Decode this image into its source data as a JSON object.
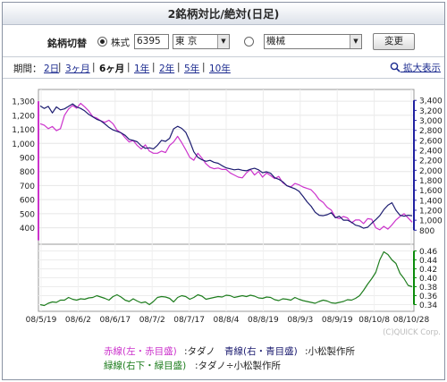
{
  "window": {
    "title": "2銘柄対比/絶対(日足)"
  },
  "switcher": {
    "label": "銘柄切替",
    "stock_label": "株式",
    "code": "6395",
    "market": "東 京",
    "sector": "機械",
    "change_button": "変更",
    "selected": "stock"
  },
  "period": {
    "label": "期間：",
    "options": [
      "2日",
      "3ヶ月",
      "6ヶ月",
      "1年",
      "2年",
      "5年",
      "10年"
    ],
    "selected": "6ヶ月",
    "zoom_label": "拡大表示"
  },
  "chart_data": {
    "type": "line",
    "x_ticks": [
      "08/5/19",
      "08/6/2",
      "08/6/17",
      "08/7/2",
      "08/7/17",
      "08/8/4",
      "08/8/19",
      "08/9/3",
      "08/9/19",
      "08/10/8",
      "08/10/28"
    ],
    "main": {
      "left_axis": {
        "ticks": [
          1300,
          1200,
          1100,
          1000,
          900,
          800,
          700,
          600,
          500,
          400
        ],
        "range": [
          340,
          1320
        ],
        "color": "#cc33cc"
      },
      "right_axis": {
        "ticks": [
          3400,
          3200,
          3000,
          2800,
          2600,
          2400,
          2200,
          2000,
          1800,
          1600,
          1400,
          1200,
          1000,
          800
        ],
        "range": [
          680,
          3440
        ],
        "color": "#2020a0"
      },
      "series": [
        {
          "name": "タダノ",
          "axis": "left",
          "color": "#cc33cc",
          "values": [
            1140,
            1130,
            1105,
            1120,
            1090,
            1105,
            1200,
            1245,
            1270,
            1250,
            1285,
            1260,
            1230,
            1190,
            1180,
            1160,
            1150,
            1165,
            1140,
            1095,
            1075,
            1040,
            1010,
            1020,
            985,
            960,
            990,
            945,
            930,
            930,
            945,
            935,
            985,
            1010,
            1050,
            1005,
            955,
            900,
            880,
            930,
            895,
            855,
            830,
            820,
            825,
            815,
            815,
            790,
            775,
            760,
            755,
            790,
            815,
            775,
            800,
            760,
            790,
            770,
            750,
            765,
            720,
            700,
            690,
            715,
            705,
            690,
            680,
            670,
            640,
            600,
            580,
            545,
            525,
            475,
            465,
            480,
            470,
            435,
            455,
            455,
            430,
            465,
            460,
            400,
            385,
            410,
            390,
            420,
            455,
            480,
            500,
            470,
            440
          ]
        },
        {
          "name": "小松製作所",
          "axis": "right",
          "color": "#1c1c70",
          "values": [
            3290,
            3240,
            3280,
            3150,
            3270,
            3210,
            3230,
            3280,
            3330,
            3270,
            3240,
            3190,
            3120,
            3070,
            3020,
            2990,
            2930,
            2860,
            2810,
            2780,
            2750,
            2700,
            2620,
            2600,
            2570,
            2490,
            2440,
            2450,
            2430,
            2500,
            2600,
            2580,
            2640,
            2830,
            2880,
            2840,
            2760,
            2580,
            2370,
            2260,
            2210,
            2180,
            2200,
            2160,
            2140,
            2090,
            2050,
            2030,
            2010,
            2020,
            2000,
            1990,
            2020,
            2040,
            2010,
            1950,
            1970,
            1940,
            1850,
            1820,
            1770,
            1690,
            1660,
            1630,
            1580,
            1480,
            1370,
            1280,
            1160,
            1100,
            1090,
            1110,
            1150,
            1050,
            1080,
            1000,
            1000,
            960,
            900,
            880,
            840,
            860,
            940,
            1010,
            1090,
            1210,
            1300,
            1350,
            1200,
            1100,
            1080,
            1100,
            1090
          ]
        }
      ]
    },
    "ratio": {
      "right_axis": {
        "ticks": [
          0.46,
          0.44,
          0.42,
          0.4,
          0.38,
          0.36,
          0.34
        ],
        "range": [
          0.333,
          0.465
        ],
        "color": "#0a8a0a"
      },
      "series": [
        {
          "name": "タダノ÷小松製作所",
          "color": "#1e7d1e",
          "values": [
            0.34,
            0.338,
            0.343,
            0.346,
            0.345,
            0.35,
            0.35,
            0.356,
            0.352,
            0.35,
            0.353,
            0.352,
            0.355,
            0.356,
            0.36,
            0.357,
            0.354,
            0.35,
            0.358,
            0.362,
            0.357,
            0.35,
            0.347,
            0.353,
            0.348,
            0.344,
            0.346,
            0.34,
            0.347,
            0.356,
            0.358,
            0.357,
            0.354,
            0.346,
            0.356,
            0.36,
            0.358,
            0.352,
            0.356,
            0.362,
            0.359,
            0.352,
            0.354,
            0.356,
            0.358,
            0.357,
            0.361,
            0.36,
            0.356,
            0.358,
            0.36,
            0.358,
            0.361,
            0.359,
            0.355,
            0.354,
            0.357,
            0.356,
            0.351,
            0.349,
            0.353,
            0.352,
            0.35,
            0.356,
            0.352,
            0.349,
            0.347,
            0.345,
            0.343,
            0.347,
            0.35,
            0.348,
            0.344,
            0.343,
            0.345,
            0.347,
            0.351,
            0.35,
            0.354,
            0.36,
            0.372,
            0.386,
            0.398,
            0.412,
            0.44,
            0.458,
            0.452,
            0.44,
            0.432,
            0.41,
            0.398,
            0.383,
            0.38
          ]
        }
      ]
    }
  },
  "copyright": "(C)QUICK Corp.",
  "legend": {
    "line1_red_label": "赤線(左・赤目盛)",
    "line1_red_value": ":タダノ",
    "line1_blue_label": "青線(右・青目盛)",
    "line1_blue_value": ":小松製作所",
    "line2_green_label": "緑線(右下・緑目盛)",
    "line2_green_value": ":タダノ÷小松製作所"
  }
}
